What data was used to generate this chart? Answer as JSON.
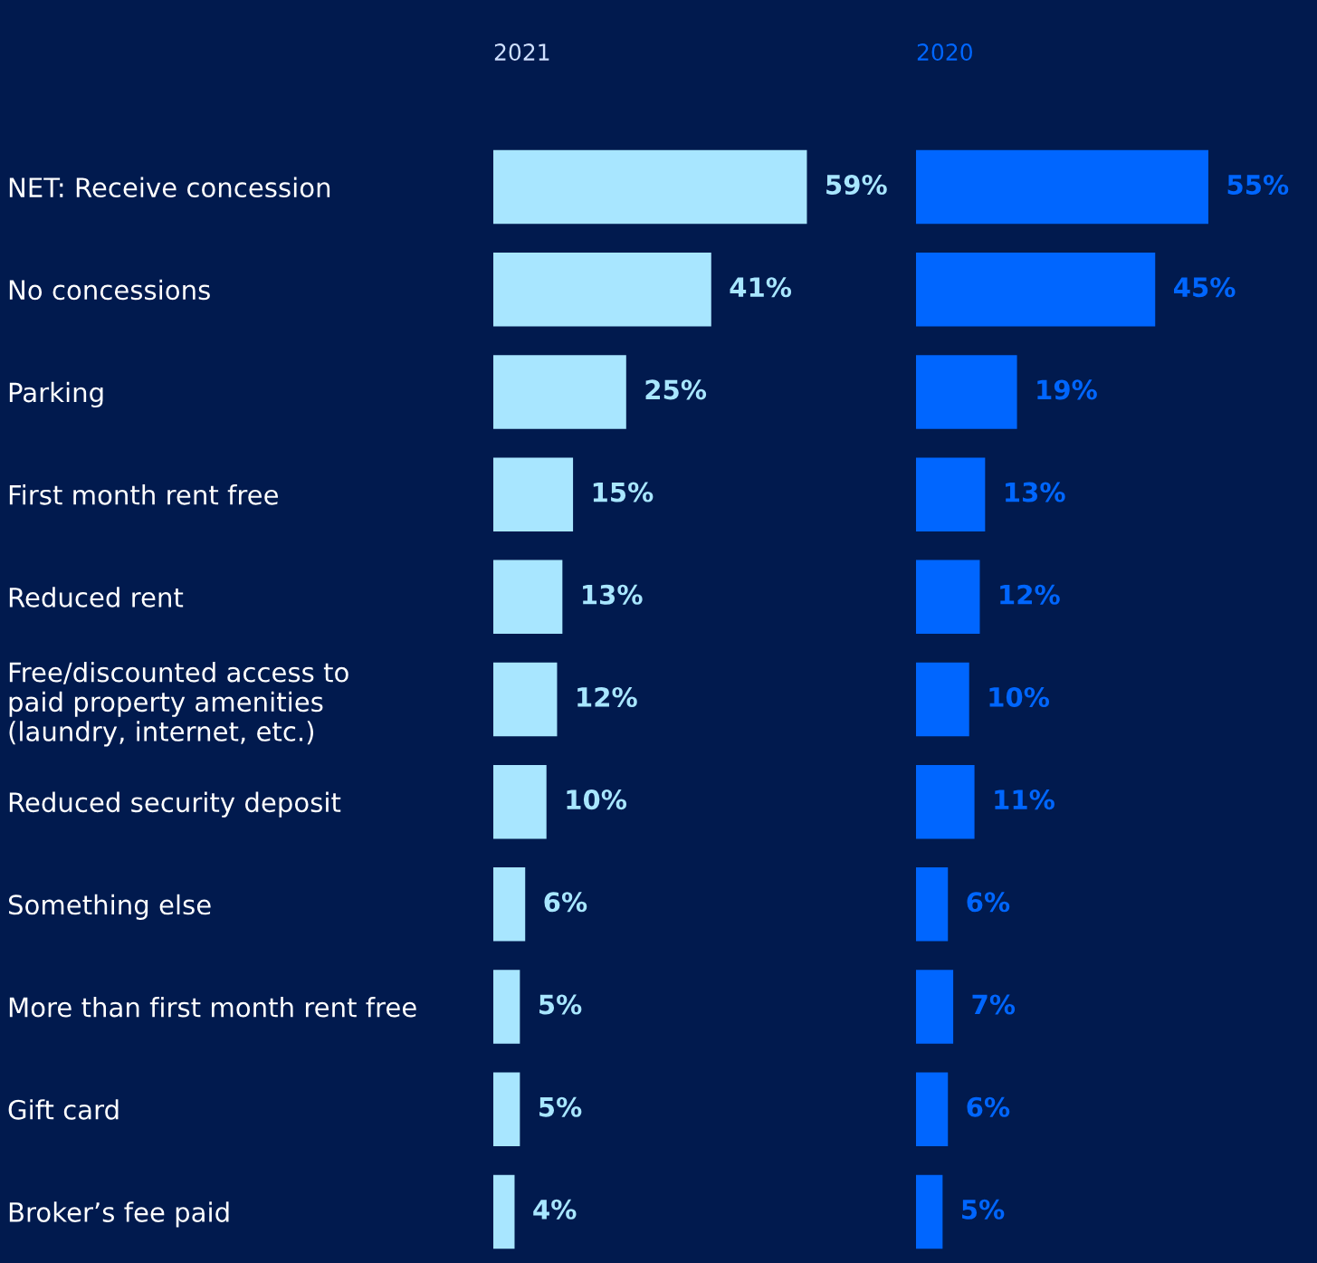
{
  "chart_data": [
    {
      "type": "bar",
      "orientation": "horizontal",
      "title": "2021",
      "categories": [
        "NET: Receive concession",
        "No concessions",
        "Parking",
        "First month rent free",
        "Reduced rent",
        "Free/discounted access to\npaid property amenities\n(laundry, internet, etc.)",
        "Reduced security deposit",
        "Something else",
        "More than first month rent free",
        "Gift card",
        "Broker’s fee paid"
      ],
      "series": [
        {
          "color": "#a8e6ff",
          "values": [
            59,
            41,
            25,
            15,
            13,
            12,
            10,
            6,
            5,
            5,
            4
          ],
          "value_labels": [
            "59%",
            "41%",
            "25%",
            "15%",
            "13%",
            "12%",
            "10%",
            "6%",
            "5%",
            "5%",
            "4%"
          ]
        }
      ],
      "tick_labels": "y",
      "grid": false,
      "legend": false
    },
    {
      "type": "bar",
      "orientation": "horizontal",
      "title": "2020",
      "categories": [
        null,
        null,
        null,
        null,
        null,
        null,
        null,
        null,
        null,
        null,
        null
      ],
      "series": [
        {
          "color": "#0066ff",
          "values": [
            55,
            45,
            19,
            13,
            12,
            10,
            11,
            6,
            7,
            6,
            5
          ],
          "value_labels": [
            "55%",
            "45%",
            "19%",
            "13%",
            "12%",
            "10%",
            "11%",
            "6%",
            "7%",
            "6%",
            "5%"
          ]
        }
      ],
      "tick_labels": false,
      "grid": false,
      "legend": false
    }
  ]
}
